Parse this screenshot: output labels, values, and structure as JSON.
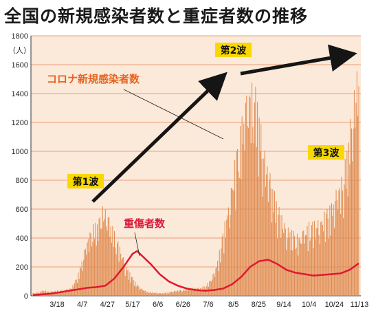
{
  "title": "全国の新規感染者数と重症者数の推移",
  "colors": {
    "new_cases": "#e08a4e",
    "severe": "#e0182e",
    "grid": "#e2865a",
    "plot_bg": "#fbe9d9",
    "wave_label_bg": "#f8d800"
  },
  "chart_data": {
    "type": "bar",
    "unit_label": "（人）",
    "ylim": [
      0,
      1800
    ],
    "yticks": [
      0,
      200,
      400,
      600,
      800,
      1000,
      1200,
      1400,
      1600,
      1800
    ],
    "xtick_labels": [
      "3/18",
      "4/7",
      "4/27",
      "5/17",
      "6/6",
      "6/26",
      "7/6",
      "8/5",
      "8/25",
      "9/14",
      "10/4",
      "10/24",
      "11/13"
    ],
    "series": [
      {
        "name": "コロナ新規感染者数",
        "type": "bar",
        "x_day": [
          0,
          6,
          12,
          18,
          24,
          30,
          36,
          42,
          48,
          54,
          60,
          66,
          72,
          78,
          84,
          90,
          96,
          102,
          108,
          114,
          120,
          126,
          132,
          138,
          144,
          150,
          156,
          162,
          168,
          174,
          180,
          186,
          192,
          198,
          204,
          210,
          216,
          222,
          228,
          234,
          240,
          246,
          252,
          258,
          264,
          270,
          276,
          282,
          288,
          294,
          300,
          306,
          312,
          318,
          324,
          330,
          336,
          342,
          348,
          354,
          360
        ],
        "values": [
          20,
          25,
          40,
          30,
          35,
          40,
          45,
          55,
          120,
          250,
          400,
          500,
          520,
          650,
          550,
          450,
          350,
          230,
          150,
          90,
          50,
          30,
          25,
          20,
          20,
          25,
          35,
          40,
          45,
          55,
          60,
          55,
          80,
          130,
          250,
          450,
          650,
          900,
          1150,
          1350,
          1500,
          1450,
          1200,
          950,
          800,
          650,
          550,
          480,
          450,
          420,
          470,
          520,
          520,
          550,
          600,
          650,
          750,
          850,
          1050,
          1400,
          1700
        ]
      },
      {
        "name": "重傷者数",
        "type": "line",
        "x_day": [
          0,
          10,
          20,
          30,
          40,
          50,
          60,
          70,
          80,
          90,
          100,
          110,
          115,
          120,
          130,
          140,
          150,
          160,
          170,
          180,
          190,
          200,
          210,
          220,
          230,
          240,
          250,
          260,
          270,
          280,
          290,
          300,
          310,
          320,
          330,
          340,
          350,
          360
        ],
        "values": [
          5,
          10,
          15,
          25,
          35,
          45,
          55,
          60,
          70,
          120,
          200,
          290,
          310,
          280,
          220,
          150,
          100,
          70,
          50,
          40,
          35,
          40,
          50,
          80,
          130,
          200,
          240,
          250,
          220,
          180,
          160,
          150,
          140,
          145,
          150,
          155,
          180,
          225
        ]
      }
    ],
    "annotations": [
      {
        "text": "第1波",
        "type": "wave-label"
      },
      {
        "text": "第2波",
        "type": "wave-label"
      },
      {
        "text": "第3波",
        "type": "wave-label"
      }
    ],
    "grid": true
  }
}
